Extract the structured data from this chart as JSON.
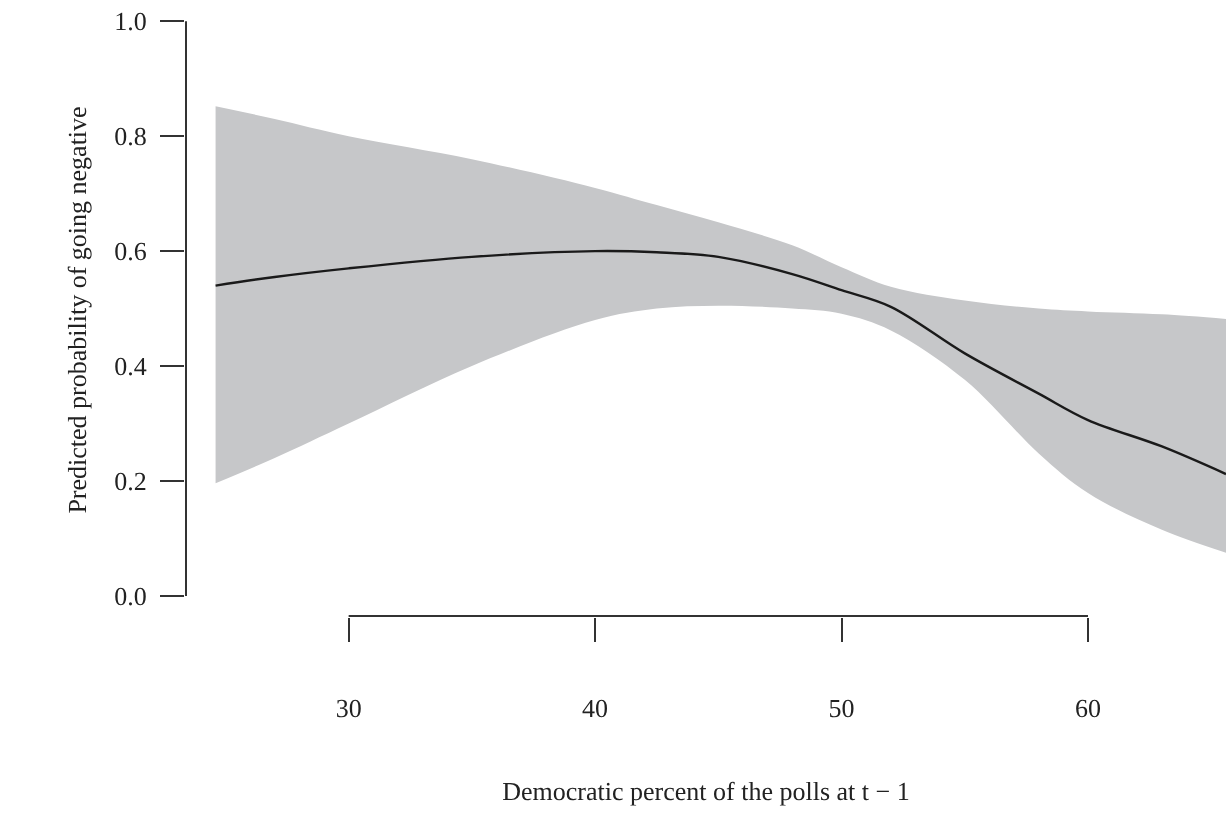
{
  "chart_data": {
    "type": "line",
    "xlabel": "Democratic percent of the polls at t − 1",
    "ylabel": "Predicted probability of going negative",
    "x": [
      24.6,
      27,
      30,
      35,
      40,
      42.5,
      45,
      48,
      50,
      52,
      55,
      58,
      60,
      63,
      65.6
    ],
    "series": [
      {
        "color": "#1a1a1a",
        "values": [
          0.54,
          0.555,
          0.57,
          0.59,
          0.6,
          0.598,
          0.59,
          0.56,
          0.532,
          0.503,
          0.422,
          0.352,
          0.306,
          0.26,
          0.212
        ],
        "lower": [
          0.196,
          0.24,
          0.3,
          0.4,
          0.48,
          0.5,
          0.505,
          0.5,
          0.491,
          0.462,
          0.376,
          0.248,
          0.179,
          0.115,
          0.075
        ],
        "upper": [
          0.852,
          0.83,
          0.8,
          0.76,
          0.71,
          0.68,
          0.65,
          0.61,
          0.572,
          0.538,
          0.514,
          0.5,
          0.495,
          0.49,
          0.482
        ]
      }
    ],
    "xlim": [
      23.4,
      65.6
    ],
    "ylim": [
      -0.035,
      1.03
    ],
    "xticks": [
      30,
      40,
      50,
      60
    ],
    "yticks": [
      {
        "value": 0,
        "label": "0.0"
      },
      {
        "value": 0.2,
        "label": "0.2"
      },
      {
        "value": 0.4,
        "label": "0.4"
      },
      {
        "value": 0.6,
        "label": "0.6"
      },
      {
        "value": 0.8,
        "label": "0.8"
      },
      {
        "value": 1,
        "label": "1.0"
      }
    ],
    "marker": "none",
    "line_style": "solid"
  }
}
